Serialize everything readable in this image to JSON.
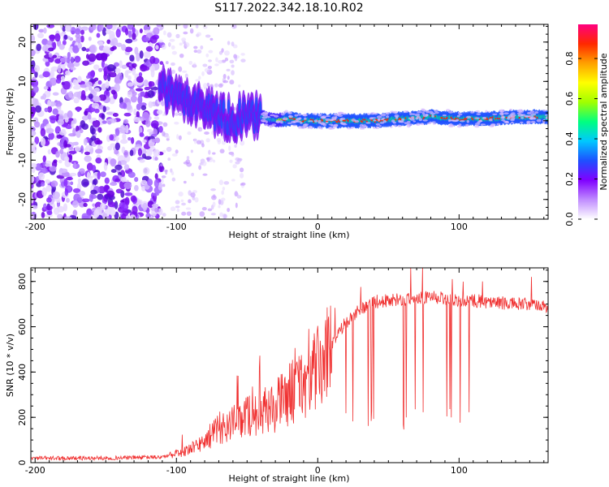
{
  "figure": {
    "title": "S117.2022.342.18.10.R02"
  },
  "chart_data": [
    {
      "type": "heatmap",
      "name": "spectrogram",
      "xlabel": "Height of straight line (km)",
      "ylabel": "Frequency (Hz)",
      "xlim": [
        -203,
        163
      ],
      "ylim": [
        -25,
        24.5
      ],
      "xticks": [
        -200,
        -100,
        0,
        100
      ],
      "xtick_labels": [
        "-200",
        "-100",
        "0",
        "100"
      ],
      "yticks": [
        -20,
        -10,
        0,
        10,
        20
      ],
      "ytick_labels": [
        "-20",
        "-10",
        "0",
        "10",
        "20"
      ],
      "ridge": {
        "description_points_x": [
          -110,
          -100,
          -90,
          -80,
          -70,
          -60,
          -50,
          -40,
          -30,
          -20,
          -10,
          0,
          20,
          40,
          60,
          80,
          100,
          120,
          140,
          163
        ],
        "description_points_y": [
          8,
          6,
          5,
          3.5,
          1.5,
          0.5,
          1.5,
          1,
          0,
          0.5,
          0,
          0,
          0,
          0,
          0.5,
          1,
          0.5,
          0.5,
          1,
          1
        ]
      },
      "noise_region_x": [
        -203,
        -110
      ],
      "colorbar": {
        "label": "Normalized spectral amplitude",
        "ticks": [
          0.0,
          0.2,
          0.4,
          0.6,
          0.8
        ],
        "tick_labels": [
          "0.0",
          "0.2",
          "0.4",
          "0.6",
          "0.8"
        ],
        "range": [
          0,
          0.97
        ],
        "colors": [
          "#ffffff",
          "#c08cff",
          "#8000ff",
          "#1e50ff",
          "#00c8ff",
          "#00ff80",
          "#a0ff00",
          "#ffff00",
          "#ffa000",
          "#ff2800",
          "#ff0080"
        ]
      }
    },
    {
      "type": "line",
      "name": "snr",
      "xlabel": "Height of straight line (km)",
      "ylabel": "SNR (10 * v/v)",
      "xlim": [
        -203,
        163
      ],
      "ylim": [
        0,
        860
      ],
      "xticks": [
        -200,
        -100,
        0,
        100
      ],
      "xtick_labels": [
        "-200",
        "-100",
        "0",
        "100"
      ],
      "yticks": [
        0,
        200,
        400,
        600,
        800
      ],
      "ytick_labels": [
        "0",
        "200",
        "400",
        "600",
        "800"
      ],
      "line_color": "#f03030",
      "envelope_x": [
        -203,
        -150,
        -110,
        -100,
        -90,
        -80,
        -70,
        -60,
        -50,
        -40,
        -30,
        -20,
        -10,
        0,
        10,
        20,
        30,
        40,
        60,
        80,
        100,
        120,
        140,
        163
      ],
      "envelope_y": [
        20,
        20,
        25,
        40,
        60,
        100,
        160,
        180,
        220,
        230,
        260,
        320,
        370,
        430,
        530,
        620,
        680,
        710,
        720,
        730,
        720,
        710,
        700,
        690
      ]
    }
  ]
}
